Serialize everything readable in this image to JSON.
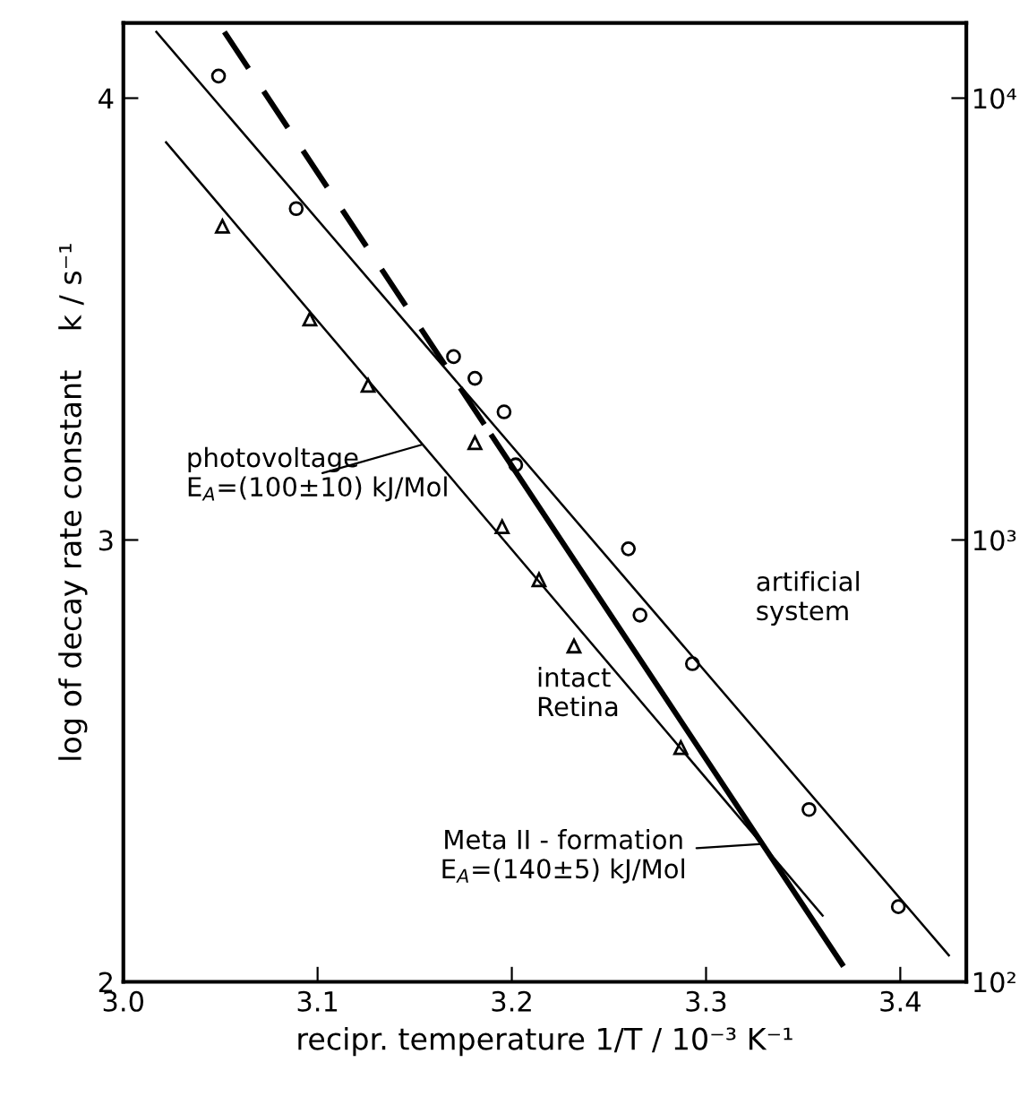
{
  "chart_data": {
    "type": "scatter",
    "xlabel": "recipr. temperature 1/T / 10⁻³ K⁻¹",
    "ylabel": "log of decay rate constant    k / s⁻¹",
    "xlim": [
      3.0,
      3.434
    ],
    "ylim": [
      2,
      4.17
    ],
    "xticks": [
      {
        "value": 3.0,
        "label": "3.0"
      },
      {
        "value": 3.1,
        "label": "3.1"
      },
      {
        "value": 3.2,
        "label": "3.2"
      },
      {
        "value": 3.3,
        "label": "3.3"
      },
      {
        "value": 3.4,
        "label": "3.4"
      }
    ],
    "yticks": [
      2,
      3,
      4
    ],
    "log": "y2",
    "y2lim": [
      100,
      14790
    ],
    "y2ticks": [
      {
        "value": 100,
        "label": "10²"
      },
      {
        "value": 1000,
        "label": "10³"
      },
      {
        "value": 10000,
        "label": "10⁴"
      }
    ],
    "grid": false,
    "legend": false,
    "series": [
      {
        "marker": "circle",
        "color": "#000000",
        "x": [
          3.049,
          3.089,
          3.17,
          3.181,
          3.196,
          3.202,
          3.26,
          3.266,
          3.293,
          3.353,
          3.399
        ],
        "values": [
          4.05,
          3.75,
          3.415,
          3.366,
          3.29,
          3.17,
          2.98,
          2.83,
          2.72,
          2.39,
          2.17
        ]
      },
      {
        "marker": "triangle",
        "color": "#000000",
        "x": [
          3.051,
          3.096,
          3.126,
          3.181,
          3.195,
          3.214,
          3.232,
          3.287
        ],
        "values": [
          3.71,
          3.5,
          3.35,
          3.22,
          3.03,
          2.91,
          2.76,
          2.53
        ]
      },
      {
        "type": "line",
        "line_style": "solid",
        "color": "#000000",
        "x": [
          3.017,
          3.425
        ],
        "values": [
          4.15,
          2.06
        ]
      },
      {
        "type": "line",
        "line_style": "solid",
        "color": "#000000",
        "x": [
          3.022,
          3.36
        ],
        "values": [
          3.9,
          2.15
        ]
      },
      {
        "type": "line",
        "line_style": "dashed",
        "color": "#000000",
        "x": [
          3.052,
          3.19
        ],
        "values": [
          4.15,
          3.234
        ]
      },
      {
        "type": "line",
        "line_style": "solid",
        "color": "#000000",
        "x": [
          3.19,
          3.37
        ],
        "values": [
          3.234,
          2.04
        ]
      }
    ],
    "annotations": [
      {
        "text": "photovoltage\nE$_{A}$=(100±10) kJ/Mol",
        "x": 3.154,
        "y": 3.216
      },
      "artificial\nsystem",
      "intact\nRetina",
      {
        "text": "Meta II - formation\nE$_{A}$=(140±5) kJ/Mol",
        "x": 3.329,
        "y": 2.312
      }
    ]
  }
}
